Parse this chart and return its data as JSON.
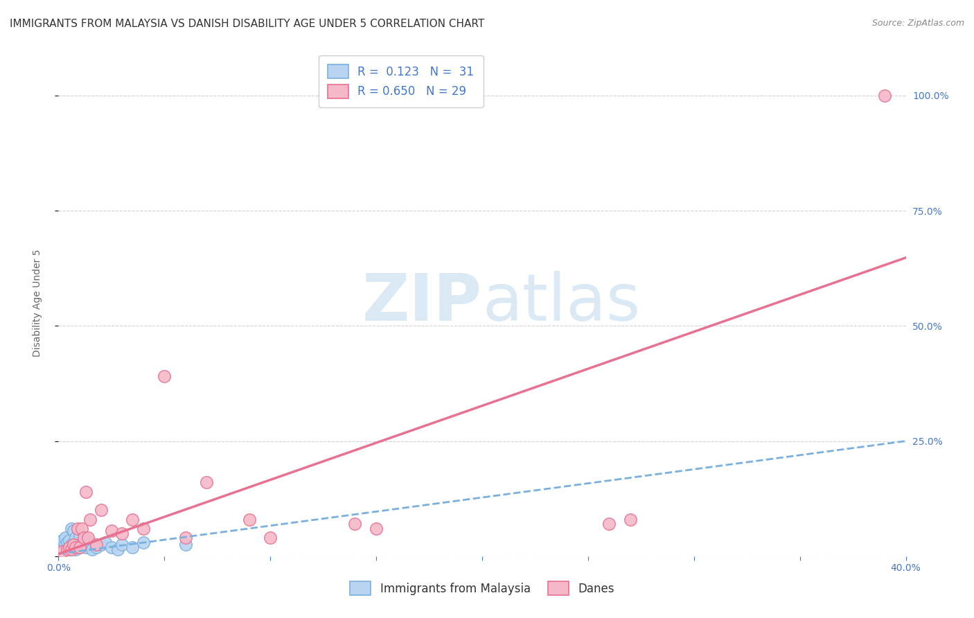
{
  "title": "IMMIGRANTS FROM MALAYSIA VS DANISH DISABILITY AGE UNDER 5 CORRELATION CHART",
  "source": "Source: ZipAtlas.com",
  "xlabel_bottom": "Immigrants from Malaysia",
  "ylabel": "Disability Age Under 5",
  "xmin": 0.0,
  "xmax": 0.4,
  "ymin": 0.0,
  "ymax": 1.1,
  "yticks": [
    0.0,
    0.25,
    0.5,
    0.75,
    1.0
  ],
  "ytick_labels": [
    "",
    "25.0%",
    "50.0%",
    "75.0%",
    "100.0%"
  ],
  "xticks": [
    0.0,
    0.05,
    0.1,
    0.15,
    0.2,
    0.25,
    0.3,
    0.35,
    0.4
  ],
  "xtick_labels_show": [
    "0.0%",
    "",
    "",
    "",
    "",
    "",
    "",
    "",
    "40.0%"
  ],
  "blue_R": 0.123,
  "blue_N": 31,
  "pink_R": 0.65,
  "pink_N": 29,
  "blue_color": "#b8d4f0",
  "blue_edge_color": "#7ab0e0",
  "pink_color": "#f5b8c8",
  "pink_edge_color": "#e87090",
  "legend_text_color": "#4477cc",
  "watermark_color": "#cce0f0",
  "blue_scatter_x": [
    0.001,
    0.002,
    0.003,
    0.003,
    0.004,
    0.004,
    0.005,
    0.005,
    0.006,
    0.006,
    0.007,
    0.007,
    0.008,
    0.008,
    0.009,
    0.01,
    0.01,
    0.011,
    0.012,
    0.013,
    0.015,
    0.016,
    0.018,
    0.02,
    0.022,
    0.025,
    0.028,
    0.03,
    0.035,
    0.04,
    0.06
  ],
  "blue_scatter_y": [
    0.02,
    0.035,
    0.025,
    0.04,
    0.02,
    0.03,
    0.015,
    0.035,
    0.025,
    0.06,
    0.02,
    0.055,
    0.015,
    0.04,
    0.025,
    0.02,
    0.045,
    0.03,
    0.025,
    0.02,
    0.03,
    0.015,
    0.02,
    0.025,
    0.03,
    0.02,
    0.015,
    0.025,
    0.02,
    0.03,
    0.025
  ],
  "pink_scatter_x": [
    0.002,
    0.004,
    0.005,
    0.006,
    0.007,
    0.008,
    0.009,
    0.01,
    0.011,
    0.012,
    0.013,
    0.014,
    0.015,
    0.018,
    0.02,
    0.025,
    0.03,
    0.035,
    0.04,
    0.05,
    0.06,
    0.07,
    0.09,
    0.1,
    0.14,
    0.15,
    0.26,
    0.27,
    0.39
  ],
  "pink_scatter_y": [
    0.01,
    0.015,
    0.02,
    0.015,
    0.025,
    0.02,
    0.06,
    0.02,
    0.06,
    0.04,
    0.14,
    0.04,
    0.08,
    0.025,
    0.1,
    0.055,
    0.05,
    0.08,
    0.06,
    0.39,
    0.04,
    0.16,
    0.08,
    0.04,
    0.07,
    0.06,
    0.07,
    0.08,
    1.0
  ],
  "blue_trend_x": [
    0.0,
    0.4
  ],
  "blue_trend_y": [
    0.005,
    0.25
  ],
  "pink_trend_x": [
    0.0,
    0.4
  ],
  "pink_trend_y": [
    0.005,
    0.648
  ],
  "grid_color": "#d0d0d0",
  "background_color": "#ffffff",
  "title_fontsize": 11,
  "axis_label_fontsize": 10,
  "tick_fontsize": 10,
  "legend_fontsize": 12
}
